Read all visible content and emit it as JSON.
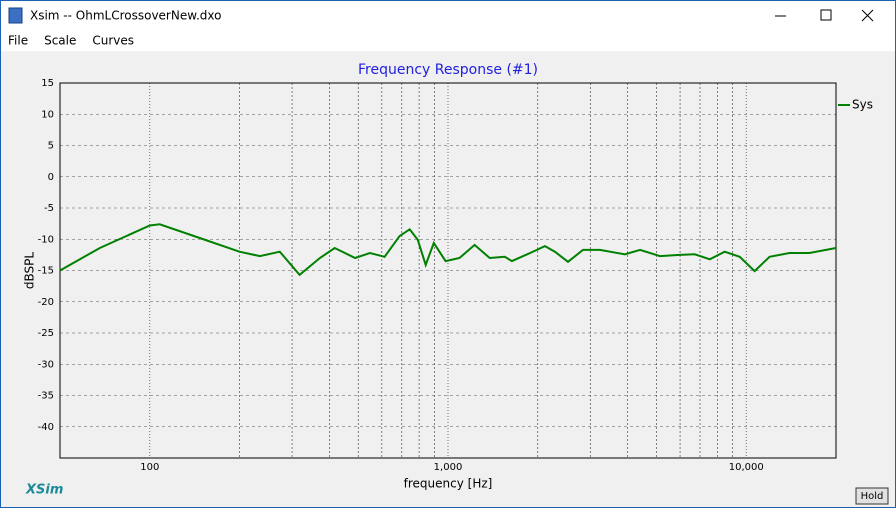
{
  "window_title": "Xsim -- OhmLCrossoverNew.dxo",
  "menu": [
    "File",
    "Scale",
    "Curves"
  ],
  "brand": "XSim",
  "hold_button": "Hold",
  "chart_data": {
    "type": "line",
    "title": "Frequency Response (#1)",
    "xlabel": "frequency [Hz]",
    "ylabel": "dBSPL",
    "xscale": "log",
    "xlim": [
      50,
      20000
    ],
    "ylim": [
      -45,
      15
    ],
    "xticks": [
      100,
      {
        "value": 1000,
        "label": "1,000"
      },
      {
        "value": 10000,
        "label": "10,000"
      }
    ],
    "xminorticks": [
      200,
      300,
      400,
      500,
      600,
      700,
      800,
      900,
      2000,
      3000,
      4000,
      5000,
      6000,
      7000,
      8000,
      9000
    ],
    "yticks": [
      15,
      10,
      5,
      0,
      -5,
      -10,
      -15,
      -20,
      -25,
      -30,
      -35,
      -40
    ],
    "grid": true,
    "legend": "upper right",
    "x": [
      50,
      68,
      100,
      108,
      147,
      200,
      234,
      273,
      318,
      372,
      417,
      488,
      547,
      613,
      688,
      744,
      792,
      842,
      896,
      982,
      1093,
      1228,
      1380,
      1551,
      1638,
      1885,
      2113,
      2283,
      2526,
      2835,
      3232,
      3920,
      4406,
      5138,
      5991,
      6723,
      7546,
      8470,
      9505,
      10668,
      11975,
      13965,
      16283,
      20000
    ],
    "series": [
      {
        "name": "Sys",
        "color": "#008000",
        "values": [
          -15,
          -11.4,
          -7.8,
          -7.6,
          -9.8,
          -12,
          -12.7,
          -12,
          -15.7,
          -13,
          -11.4,
          -13,
          -12.2,
          -12.8,
          -9.5,
          -8.4,
          -10.1,
          -14.1,
          -10.6,
          -13.5,
          -13,
          -10.9,
          -13,
          -12.8,
          -13.5,
          -12.2,
          -11.1,
          -12,
          -13.6,
          -11.7,
          -11.7,
          -12.4,
          -11.7,
          -12.7,
          -12.5,
          -12.4,
          -13.2,
          -12,
          -12.8,
          -15.1,
          -12.8,
          -12.2,
          -12.2,
          -11.4
        ]
      }
    ]
  }
}
